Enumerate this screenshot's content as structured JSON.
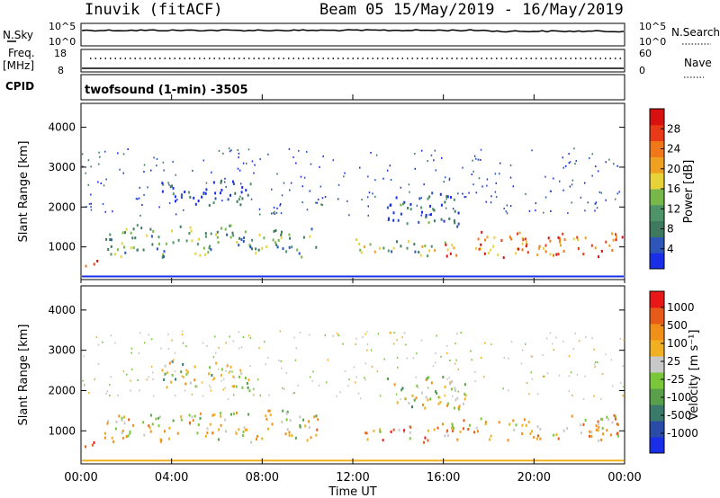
{
  "header": {
    "station": "Inuvik (fitACF)",
    "beam_date": "Beam 05  15/May/2019 - 16/May/2019"
  },
  "status_panels": {
    "nsky_label": "N.Sky",
    "nsearch_label": "N.Search",
    "freq_label": "Freq.",
    "freq_unit": "[MHz]",
    "nave_label": "Nave",
    "cpid_label": "CPID",
    "cpid_value": "twofsound (1-min) -3505",
    "nsky_ticks": [
      "10^5",
      "10^0"
    ],
    "nsearch_ticks": [
      "10^5",
      "10^0"
    ],
    "freq_ticks": [
      "18",
      "8"
    ],
    "nave_ticks": [
      "60",
      "0"
    ]
  },
  "colors": {
    "power_scale": [
      "#1a2ee8",
      "#2e56b8",
      "#3f7a5e",
      "#4f9468",
      "#78b84a",
      "#e8d23a",
      "#f0a020",
      "#f07818",
      "#e83a18",
      "#d81010"
    ],
    "velocity_scale": [
      "#1a2ee8",
      "#2a4ca8",
      "#3a7a6a",
      "#5aa04a",
      "#7ac83a",
      "#c8c8c8",
      "#f0b020",
      "#f09018",
      "#e85a18",
      "#e81818"
    ]
  },
  "chart_data": [
    {
      "type": "heatmap",
      "name": "power",
      "ylabel": "Slant Range [km]",
      "yticks": [
        "1000",
        "2000",
        "3000",
        "4000"
      ],
      "ylim": [
        180,
        4600
      ],
      "xlim": [
        0,
        24
      ],
      "colorbar_label": "Power [dB]",
      "colorbar_ticks": [
        "4",
        "8",
        "12",
        "16",
        "20",
        "24",
        "28"
      ],
      "colorbar_range": [
        0,
        32
      ],
      "bands": [
        {
          "t0": 1.0,
          "t1": 10.5,
          "r0": 820,
          "r1": 1500,
          "level": 0.35
        },
        {
          "t0": 3.5,
          "t1": 7.5,
          "r0": 2100,
          "r1": 2700,
          "level": 0.1
        },
        {
          "t0": 12.0,
          "t1": 16.5,
          "r0": 800,
          "r1": 1150,
          "level": 0.4
        },
        {
          "t0": 13.5,
          "t1": 17.0,
          "r0": 1600,
          "r1": 2350,
          "level": 0.2
        },
        {
          "t0": 16.0,
          "t1": 23.9,
          "r0": 820,
          "r1": 1350,
          "level": 0.75
        },
        {
          "t0": 0.0,
          "t1": 0.8,
          "r0": 550,
          "r1": 780,
          "level": 0.85
        }
      ]
    },
    {
      "type": "heatmap",
      "name": "velocity",
      "ylabel": "Slant Range [km]",
      "xlabel": "Time UT",
      "yticks": [
        "1000",
        "2000",
        "3000",
        "4000"
      ],
      "xticks": [
        "00:00",
        "04:00",
        "08:00",
        "12:00",
        "16:00",
        "20:00",
        "00:00"
      ],
      "ylim": [
        180,
        4600
      ],
      "xlim": [
        0,
        24
      ],
      "colorbar_label": "Velocity [m s⁻¹]",
      "colorbar_ticks": [
        "1000",
        "500",
        "100",
        "25",
        "-25",
        "-100",
        "-500",
        "-1000"
      ],
      "bands": [
        {
          "t0": 1.0,
          "t1": 10.5,
          "r0": 820,
          "r1": 1500,
          "level": 0.6
        },
        {
          "t0": 3.5,
          "t1": 7.5,
          "r0": 2100,
          "r1": 2700,
          "level": 0.5
        },
        {
          "t0": 12.0,
          "t1": 16.5,
          "r0": 800,
          "r1": 1150,
          "level": 0.7
        },
        {
          "t0": 13.5,
          "t1": 17.0,
          "r0": 1600,
          "r1": 2350,
          "level": 0.5
        },
        {
          "t0": 16.0,
          "t1": 23.9,
          "r0": 820,
          "r1": 1350,
          "level": 0.65
        },
        {
          "t0": 0.0,
          "t1": 0.8,
          "r0": 550,
          "r1": 780,
          "level": 0.8
        }
      ]
    }
  ]
}
